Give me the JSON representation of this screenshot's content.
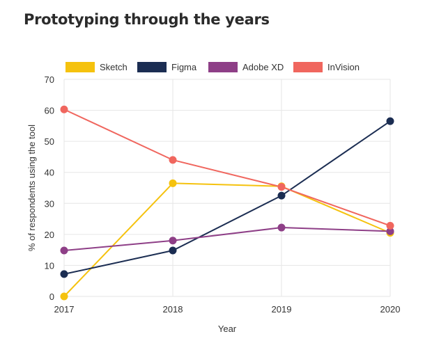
{
  "page": {
    "title": "Prototyping through the years"
  },
  "chart_data": {
    "type": "line",
    "title": "Prototyping through the years",
    "xlabel": "Year",
    "ylabel": "% of respondents using the tool",
    "x": [
      "2017",
      "2018",
      "2019",
      "2020"
    ],
    "ylim": [
      0,
      70
    ],
    "yticks": [
      0,
      10,
      20,
      30,
      40,
      50,
      60,
      70
    ],
    "grid": true,
    "legend_position": "top",
    "series": [
      {
        "name": "Sketch",
        "color": "#f5c20e",
        "values": [
          0,
          36.5,
          35.5,
          20.5
        ]
      },
      {
        "name": "Figma",
        "color": "#1b2d52",
        "values": [
          7.2,
          14.8,
          32.5,
          56.5
        ]
      },
      {
        "name": "Adobe XD",
        "color": "#8e3f87",
        "values": [
          14.8,
          18,
          22.2,
          21
        ]
      },
      {
        "name": "InVision",
        "color": "#f0665e",
        "values": [
          60.3,
          44,
          35.3,
          22.8
        ]
      }
    ]
  }
}
